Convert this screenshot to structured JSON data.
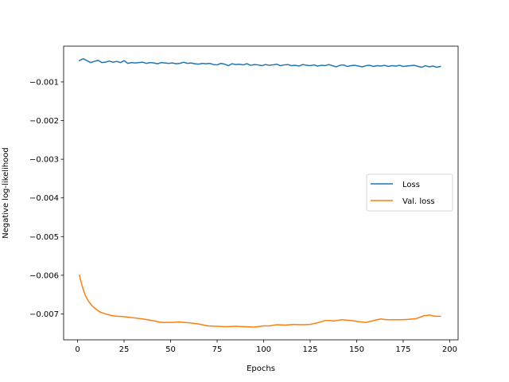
{
  "chart_data": {
    "type": "line",
    "title": "",
    "xlabel": "Epochs",
    "ylabel": "Negative log-likelihood",
    "xlim": [
      -7.5,
      204.5
    ],
    "ylim": [
      -0.00767,
      -7.5e-05
    ],
    "x_ticks": [
      0,
      25,
      50,
      75,
      100,
      125,
      150,
      175,
      200
    ],
    "x_tick_labels": [
      "0",
      "25",
      "50",
      "75",
      "100",
      "125",
      "150",
      "175",
      "200"
    ],
    "y_ticks": [
      -0.001,
      -0.002,
      -0.003,
      -0.004,
      -0.005,
      -0.006,
      -0.007
    ],
    "y_tick_labels": [
      "−0.001",
      "−0.002",
      "−0.003",
      "−0.004",
      "−0.005",
      "−0.006",
      "−0.007"
    ],
    "grid": false,
    "legend_position": "center-right",
    "series": [
      {
        "name": "Loss",
        "color": "#1f77b4",
        "x": [
          1,
          3,
          5,
          7,
          9,
          11,
          13,
          15,
          17,
          19,
          21,
          23,
          25,
          27,
          29,
          31,
          33,
          35,
          37,
          39,
          41,
          43,
          45,
          47,
          49,
          51,
          53,
          55,
          57,
          59,
          61,
          63,
          65,
          67,
          69,
          71,
          73,
          75,
          77,
          79,
          81,
          83,
          85,
          87,
          89,
          91,
          93,
          95,
          97,
          99,
          101,
          103,
          105,
          107,
          109,
          111,
          113,
          115,
          117,
          119,
          121,
          123,
          125,
          127,
          129,
          131,
          133,
          135,
          137,
          139,
          141,
          143,
          145,
          147,
          149,
          151,
          153,
          155,
          157,
          159,
          161,
          163,
          165,
          167,
          169,
          171,
          173,
          175,
          177,
          179,
          181,
          183,
          185,
          187,
          189,
          191,
          193,
          195
        ],
        "values": [
          -0.00045,
          -0.0004,
          -0.00045,
          -0.0005,
          -0.00047,
          -0.00044,
          -0.0005,
          -0.00049,
          -0.00046,
          -0.00049,
          -0.00047,
          -0.0005,
          -0.00045,
          -0.00052,
          -0.0005,
          -0.00051,
          -0.0005,
          -0.00049,
          -0.00052,
          -0.0005,
          -0.00051,
          -0.00053,
          -0.0005,
          -0.00051,
          -0.00052,
          -0.00051,
          -0.00053,
          -0.00052,
          -0.00049,
          -0.00052,
          -0.00051,
          -0.00053,
          -0.00054,
          -0.00052,
          -0.00053,
          -0.00052,
          -0.00055,
          -0.00056,
          -0.00052,
          -0.00054,
          -0.00058,
          -0.00053,
          -0.00055,
          -0.00054,
          -0.00056,
          -0.00053,
          -0.00057,
          -0.00055,
          -0.00056,
          -0.00058,
          -0.00055,
          -0.00057,
          -0.00056,
          -0.00054,
          -0.00058,
          -0.00056,
          -0.00055,
          -0.00058,
          -0.00057,
          -0.00059,
          -0.00055,
          -0.00057,
          -0.00058,
          -0.00056,
          -0.00059,
          -0.00057,
          -0.00058,
          -0.00055,
          -0.00058,
          -0.00061,
          -0.00057,
          -0.00056,
          -0.0006,
          -0.00058,
          -0.00057,
          -0.00059,
          -0.00061,
          -0.00058,
          -0.00057,
          -0.0006,
          -0.00058,
          -0.00059,
          -0.00057,
          -0.0006,
          -0.00058,
          -0.00059,
          -0.00057,
          -0.0006,
          -0.00059,
          -0.00058,
          -0.00057,
          -0.0006,
          -0.00062,
          -0.00058,
          -0.00061,
          -0.00059,
          -0.00062,
          -0.0006
        ]
      },
      {
        "name": "Val. loss",
        "color": "#ff7f0e",
        "x": [
          1,
          2,
          3,
          4,
          5,
          6,
          8,
          10,
          12,
          15,
          18,
          21,
          25,
          30,
          35,
          40,
          45,
          50,
          55,
          60,
          65,
          70,
          75,
          80,
          85,
          90,
          95,
          100,
          103,
          107,
          112,
          116,
          120,
          125,
          128,
          131,
          133,
          135,
          138,
          142,
          147,
          151,
          155,
          160,
          163,
          166,
          170,
          174,
          178,
          182,
          186,
          189,
          192,
          195
        ],
        "values": [
          -0.006,
          -0.0062,
          -0.00636,
          -0.0065,
          -0.0066,
          -0.00668,
          -0.0068,
          -0.00688,
          -0.00695,
          -0.007,
          -0.00704,
          -0.00706,
          -0.00707,
          -0.0071,
          -0.00713,
          -0.00717,
          -0.00722,
          -0.00722,
          -0.00721,
          -0.00723,
          -0.00726,
          -0.00731,
          -0.00732,
          -0.00733,
          -0.00732,
          -0.00733,
          -0.00734,
          -0.00731,
          -0.00731,
          -0.00728,
          -0.00729,
          -0.00727,
          -0.00728,
          -0.00727,
          -0.00724,
          -0.0072,
          -0.00717,
          -0.00717,
          -0.00718,
          -0.00715,
          -0.00717,
          -0.0072,
          -0.00722,
          -0.00716,
          -0.00713,
          -0.00715,
          -0.00715,
          -0.00715,
          -0.00714,
          -0.00712,
          -0.00705,
          -0.00703,
          -0.00706,
          -0.00706
        ]
      }
    ]
  }
}
